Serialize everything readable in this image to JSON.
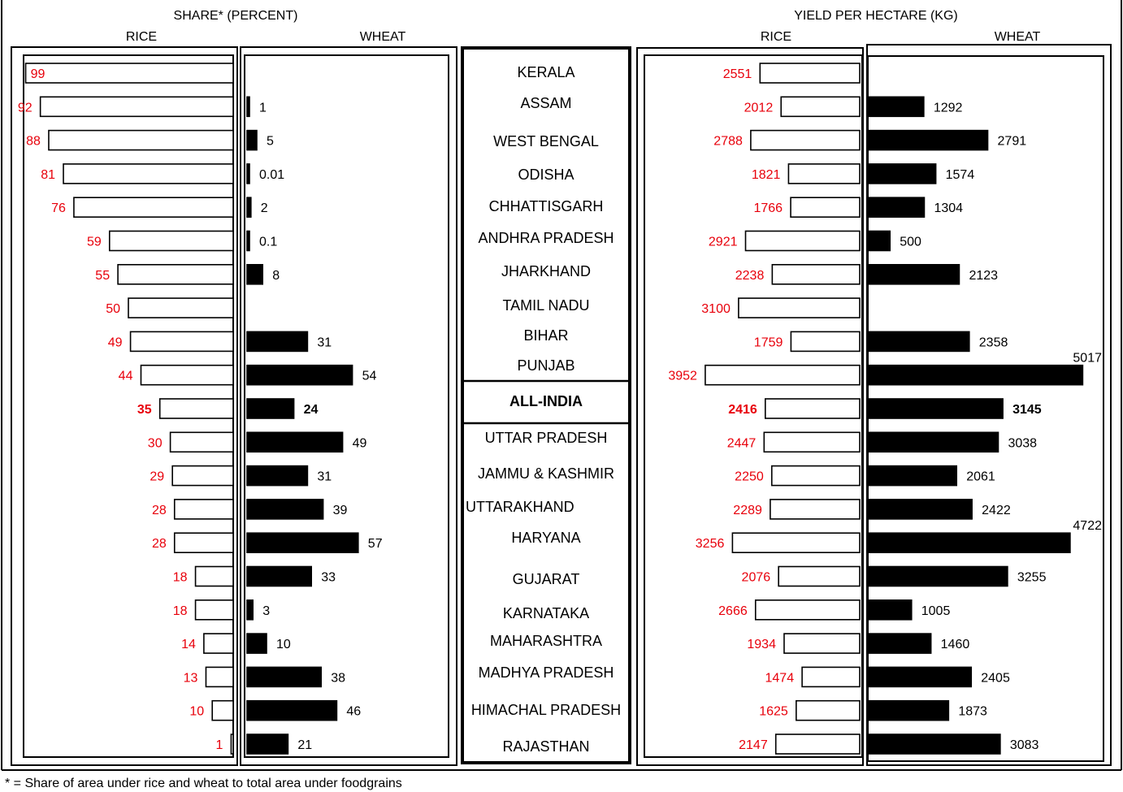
{
  "chart_data": {
    "type": "bar",
    "headers": {
      "share": "SHARE* (PERCENT)",
      "yield": "YIELD PER HECTARE (KG)",
      "rice": "RICE",
      "wheat": "WHEAT"
    },
    "footnote": "* = Share of area under rice and wheat to total area under foodgrains",
    "highlight": "ALL-INDIA",
    "colors": {
      "rice_label": "#e8000b",
      "wheat_label": "#000000",
      "rice_bar": "#ffffff",
      "wheat_bar": "#000000"
    },
    "categories": [
      "KERALA",
      "ASSAM",
      "WEST BENGAL",
      "ODISHA",
      "CHHATTISGARH",
      "ANDHRA PRADESH",
      "JHARKHAND",
      "TAMIL NADU",
      "BIHAR",
      "PUNJAB",
      "ALL-INDIA",
      "UTTAR PRADESH",
      "JAMMU & KASHMIR",
      "UTTARAKHAND",
      "HARYANA",
      "GUJARAT",
      "KARNATAKA",
      "MAHARASHTRA",
      "MADHYA PRADESH",
      "HIMACHAL PRADESH",
      "RAJASTHAN"
    ],
    "series": [
      {
        "name": "RICE",
        "group": "SHARE* (PERCENT)",
        "values": [
          99,
          92,
          88,
          81,
          76,
          59,
          55,
          50,
          49,
          44,
          35,
          30,
          29,
          28,
          28,
          18,
          18,
          14,
          13,
          10,
          1
        ],
        "labels": [
          "99",
          "92",
          "88",
          "81",
          "76",
          "59",
          "55",
          "50",
          "49",
          "44",
          "35",
          "30",
          "29",
          "28",
          "28",
          "18",
          "18",
          "14",
          "13",
          "10",
          "1"
        ]
      },
      {
        "name": "WHEAT",
        "group": "SHARE* (PERCENT)",
        "values": [
          null,
          1,
          5,
          0.01,
          2,
          0.1,
          8,
          null,
          31,
          54,
          24,
          49,
          31,
          39,
          57,
          33,
          3,
          10,
          38,
          46,
          21
        ],
        "labels": [
          "",
          "1",
          "5",
          "0.01",
          "2",
          "0.1",
          "8",
          "",
          "31",
          "54",
          "24",
          "49",
          "31",
          "39",
          "57",
          "33",
          "3",
          "10",
          "38",
          "46",
          "21"
        ]
      },
      {
        "name": "RICE",
        "group": "YIELD PER HECTARE (KG)",
        "values": [
          2551,
          2012,
          2788,
          1821,
          1766,
          2921,
          2238,
          3100,
          1759,
          3952,
          2416,
          2447,
          2250,
          2289,
          3256,
          2076,
          2666,
          1934,
          1474,
          1625,
          2147
        ],
        "labels": [
          "2551",
          "2012",
          "2788",
          "1821",
          "1766",
          "2921",
          "2238",
          "3100",
          "1759",
          "3952",
          "2416",
          "2447",
          "2250",
          "2289",
          "3256",
          "2076",
          "2666",
          "1934",
          "1474",
          "1625",
          "2147"
        ]
      },
      {
        "name": "WHEAT",
        "group": "YIELD PER HECTARE (KG)",
        "values": [
          null,
          1292,
          2791,
          1574,
          1304,
          500,
          2123,
          null,
          2358,
          5017,
          3145,
          3038,
          2061,
          2422,
          4722,
          3255,
          1005,
          1460,
          2405,
          1873,
          3083
        ],
        "labels": [
          "",
          "1292",
          "2791",
          "1574",
          "1304",
          "500",
          "2123",
          "",
          "2358",
          "5017",
          "3145",
          "3038",
          "2061",
          "2422",
          "4722",
          "3255",
          "1005",
          "1460",
          "2405",
          "1873",
          "3083"
        ]
      }
    ]
  }
}
